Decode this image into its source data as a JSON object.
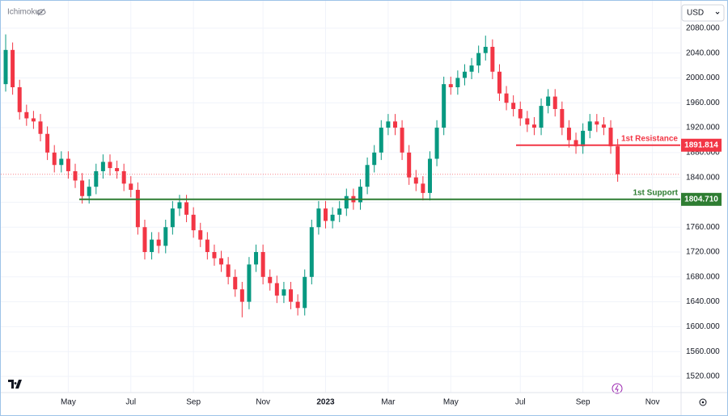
{
  "chart_data": {
    "type": "candlestick",
    "indicator": "Ichimoku",
    "currency": "USD",
    "up_color": "#089981",
    "down_color": "#f23645",
    "open": [
      1990,
      2045,
      1985,
      1945,
      1935,
      1930,
      1910,
      1880,
      1860,
      1870,
      1850,
      1835,
      1810,
      1825,
      1850,
      1865,
      1855,
      1850,
      1830,
      1820,
      1760,
      1720,
      1740,
      1730,
      1760,
      1790,
      1800,
      1780,
      1755,
      1740,
      1720,
      1710,
      1700,
      1680,
      1660,
      1640,
      1700,
      1720,
      1680,
      1670,
      1650,
      1660,
      1640,
      1630,
      1680,
      1760,
      1790,
      1770,
      1780,
      1790,
      1810,
      1800,
      1825,
      1860,
      1880,
      1920,
      1930,
      1920,
      1880,
      1840,
      1830,
      1815,
      1870,
      1920,
      1990,
      1985,
      2000,
      2010,
      2020,
      2040,
      2050,
      2010,
      1975,
      1960,
      1950,
      1935,
      1925,
      1920,
      1955,
      1970,
      1950,
      1920,
      1900,
      1890,
      1915,
      1930,
      1925,
      1920,
      1890
    ],
    "high": [
      2070,
      2057,
      1997,
      1957,
      1947,
      1942,
      1922,
      1892,
      1882,
      1882,
      1862,
      1847,
      1837,
      1862,
      1877,
      1877,
      1867,
      1862,
      1842,
      1832,
      1772,
      1752,
      1752,
      1772,
      1802,
      1812,
      1812,
      1792,
      1767,
      1752,
      1732,
      1722,
      1712,
      1692,
      1672,
      1712,
      1732,
      1732,
      1692,
      1682,
      1672,
      1672,
      1652,
      1692,
      1772,
      1802,
      1802,
      1792,
      1802,
      1822,
      1822,
      1837,
      1872,
      1892,
      1932,
      1942,
      1942,
      1932,
      1892,
      1852,
      1842,
      1882,
      1932,
      2002,
      2002,
      2012,
      2022,
      2032,
      2052,
      2068,
      2062,
      2022,
      1987,
      1972,
      1962,
      1947,
      1937,
      1967,
      1982,
      1982,
      1962,
      1932,
      1912,
      1927,
      1942,
      1942,
      1937,
      1932,
      1902
    ],
    "low": [
      1978,
      1973,
      1933,
      1923,
      1918,
      1898,
      1868,
      1848,
      1848,
      1838,
      1823,
      1798,
      1798,
      1813,
      1838,
      1843,
      1838,
      1818,
      1808,
      1748,
      1708,
      1708,
      1718,
      1718,
      1748,
      1778,
      1768,
      1743,
      1728,
      1708,
      1698,
      1688,
      1668,
      1648,
      1615,
      1628,
      1688,
      1668,
      1658,
      1638,
      1638,
      1628,
      1618,
      1618,
      1668,
      1748,
      1758,
      1758,
      1768,
      1778,
      1788,
      1788,
      1813,
      1848,
      1868,
      1908,
      1908,
      1868,
      1828,
      1818,
      1803,
      1803,
      1858,
      1908,
      1973,
      1973,
      1988,
      1998,
      2008,
      2028,
      1998,
      1963,
      1948,
      1938,
      1923,
      1913,
      1908,
      1908,
      1943,
      1938,
      1908,
      1888,
      1878,
      1878,
      1903,
      1913,
      1908,
      1878,
      1833
    ],
    "close": [
      2045,
      1985,
      1945,
      1935,
      1930,
      1910,
      1880,
      1860,
      1870,
      1850,
      1835,
      1810,
      1825,
      1850,
      1865,
      1855,
      1850,
      1830,
      1820,
      1760,
      1720,
      1740,
      1730,
      1760,
      1790,
      1800,
      1780,
      1755,
      1740,
      1720,
      1710,
      1700,
      1680,
      1660,
      1640,
      1700,
      1720,
      1680,
      1670,
      1650,
      1660,
      1640,
      1630,
      1680,
      1760,
      1790,
      1770,
      1780,
      1790,
      1810,
      1800,
      1825,
      1860,
      1880,
      1920,
      1930,
      1920,
      1880,
      1840,
      1830,
      1815,
      1870,
      1920,
      1990,
      1985,
      2000,
      2010,
      2020,
      2040,
      2050,
      2010,
      1975,
      1960,
      1950,
      1935,
      1925,
      1920,
      1955,
      1970,
      1950,
      1920,
      1900,
      1890,
      1915,
      1930,
      1925,
      1920,
      1890,
      1845
    ],
    "xlim": [
      -0.7,
      97
    ],
    "xticks": [
      {
        "value": 9,
        "label": "May"
      },
      {
        "value": 18,
        "label": "Jul"
      },
      {
        "value": 27,
        "label": "Sep"
      },
      {
        "value": 37,
        "label": "Nov"
      },
      {
        "value": 46,
        "label": "2023"
      },
      {
        "value": 55,
        "label": "Mar"
      },
      {
        "value": 64,
        "label": "May"
      },
      {
        "value": 74,
        "label": "Jul"
      },
      {
        "value": 83,
        "label": "Sep"
      },
      {
        "value": 93,
        "label": "Nov"
      }
    ],
    "ylim": [
      1494,
      2124
    ],
    "yticks": [
      {
        "value": 2080,
        "label": "2080.000"
      },
      {
        "value": 2040,
        "label": "2040.000"
      },
      {
        "value": 2000,
        "label": "2000.000"
      },
      {
        "value": 1960,
        "label": "1960.000"
      },
      {
        "value": 1920,
        "label": "1920.000"
      },
      {
        "value": 1880,
        "label": "1880.000"
      },
      {
        "value": 1840,
        "label": "1840.000"
      },
      {
        "value": 1800,
        "label": "1800.000"
      },
      {
        "value": 1760,
        "label": "1760.000"
      },
      {
        "value": 1720,
        "label": "1720.000"
      },
      {
        "value": 1680,
        "label": "1680.000"
      },
      {
        "value": 1640,
        "label": "1640.000"
      },
      {
        "value": 1600,
        "label": "1600.000"
      },
      {
        "value": 1560,
        "label": "1560.000"
      },
      {
        "value": 1520,
        "label": "1520.000"
      }
    ],
    "grid": true,
    "levels": [
      {
        "name": "1st Resistance",
        "value": 1891.814,
        "price_label": "1891.814",
        "color": "#f23645"
      },
      {
        "name": "1st Support",
        "value": 1804.71,
        "price_label": "1804.710",
        "color": "#2e7d32"
      }
    ]
  }
}
